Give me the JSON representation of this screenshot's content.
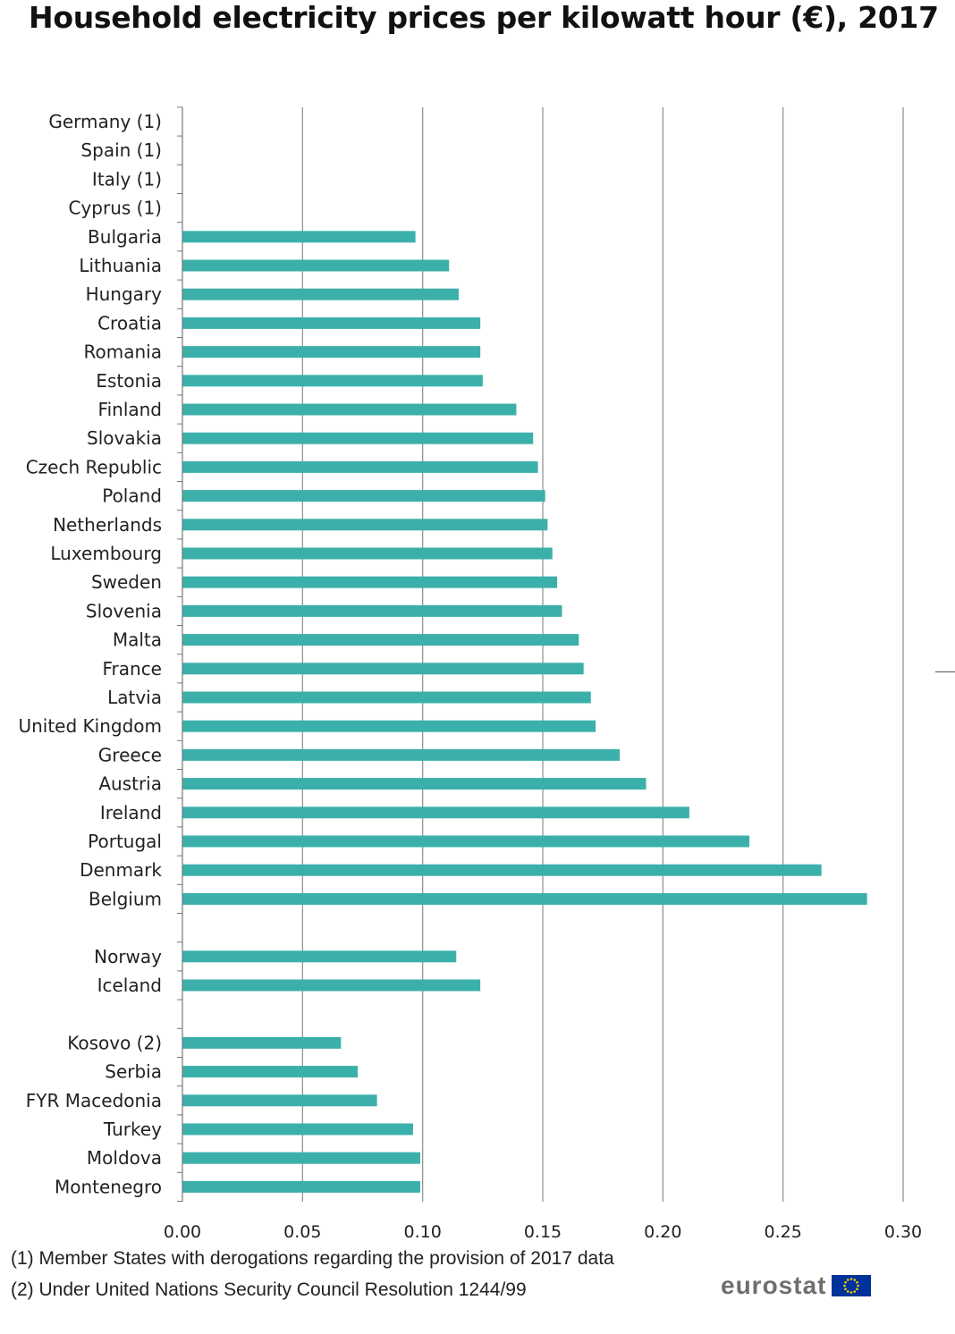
{
  "chart_data": {
    "type": "bar",
    "orientation": "horizontal",
    "title": "Household electricity prices per kilowatt hour (€), 2017",
    "categories": [
      "Germany (1)",
      "Spain (1)",
      "Italy (1)",
      "Cyprus (1)",
      "Bulgaria",
      "Lithuania",
      "Hungary",
      "Croatia",
      "Romania",
      "Estonia",
      "Finland",
      "Slovakia",
      "Czech Republic",
      "Poland",
      "Netherlands",
      "Luxembourg",
      "Sweden",
      "Slovenia",
      "Malta",
      "France",
      "Latvia",
      "United Kingdom",
      "Greece",
      "Austria",
      "Ireland",
      "Portugal",
      "Denmark",
      "Belgium",
      "",
      "Norway",
      "Iceland",
      "",
      "Kosovo (2)",
      "Serbia",
      "FYR Macedonia",
      "Turkey",
      "Moldova",
      "Montenegro"
    ],
    "values": [
      null,
      null,
      null,
      null,
      0.097,
      0.111,
      0.115,
      0.124,
      0.124,
      0.125,
      0.139,
      0.146,
      0.148,
      0.151,
      0.152,
      0.154,
      0.156,
      0.158,
      0.165,
      0.167,
      0.17,
      0.172,
      0.182,
      0.193,
      0.211,
      0.236,
      0.266,
      0.285,
      null,
      0.114,
      0.124,
      null,
      0.066,
      0.073,
      0.081,
      0.096,
      0.099,
      0.099
    ],
    "xlim": [
      0,
      0.3
    ],
    "xticks": [
      "0.00",
      "0.05",
      "0.10",
      "0.15",
      "0.20",
      "0.25",
      "0.30"
    ],
    "grid": true,
    "bar_color": "#3BB0AB",
    "gridline_color": "#8c8c8c"
  },
  "footnotes": [
    "(1) Member States with derogations regarding the provision of 2017 data",
    "(2) Under United Nations Security Council Resolution 1244/99"
  ],
  "logo": {
    "text": "eurostat",
    "flag_icon": "eu-flag-icon",
    "flag_color": "#003399",
    "star_color": "#FFCC00"
  }
}
